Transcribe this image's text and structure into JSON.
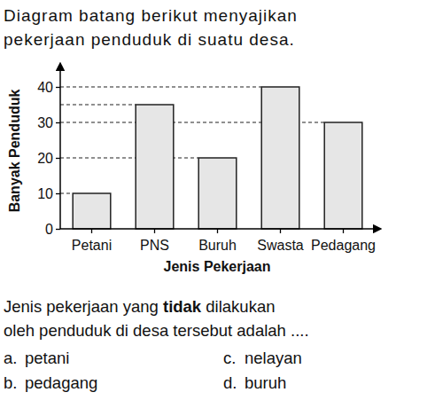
{
  "intro": [
    "Diagram batang berikut menyajikan",
    "pekerjaan penduduk di suatu desa."
  ],
  "chart_data": {
    "type": "bar",
    "x_label": "Jenis Pekerjaan",
    "y_label": "Banyak Penduduk",
    "categories": [
      "Petani",
      "PNS",
      "Buruh",
      "Swasta",
      "Pedagang"
    ],
    "values": [
      10,
      35,
      20,
      40,
      30
    ],
    "color": "#e6e6e6",
    "ylim": [
      0,
      45
    ],
    "yticks": [
      0,
      10,
      20,
      30,
      40
    ]
  },
  "question": [
    [
      {
        "text": "Jenis pekerjaan yang "
      },
      {
        "text": "tidak",
        "bold": true
      },
      {
        "text": " dilakukan"
      }
    ],
    [
      {
        "text": "oleh penduduk di desa tersebut adalah ...."
      }
    ]
  ],
  "options": [
    {
      "letter": "a.",
      "text": "petani"
    },
    {
      "letter": "b.",
      "text": "pedagang"
    },
    {
      "letter": "c.",
      "text": "nelayan"
    },
    {
      "letter": "d.",
      "text": "buruh"
    }
  ]
}
